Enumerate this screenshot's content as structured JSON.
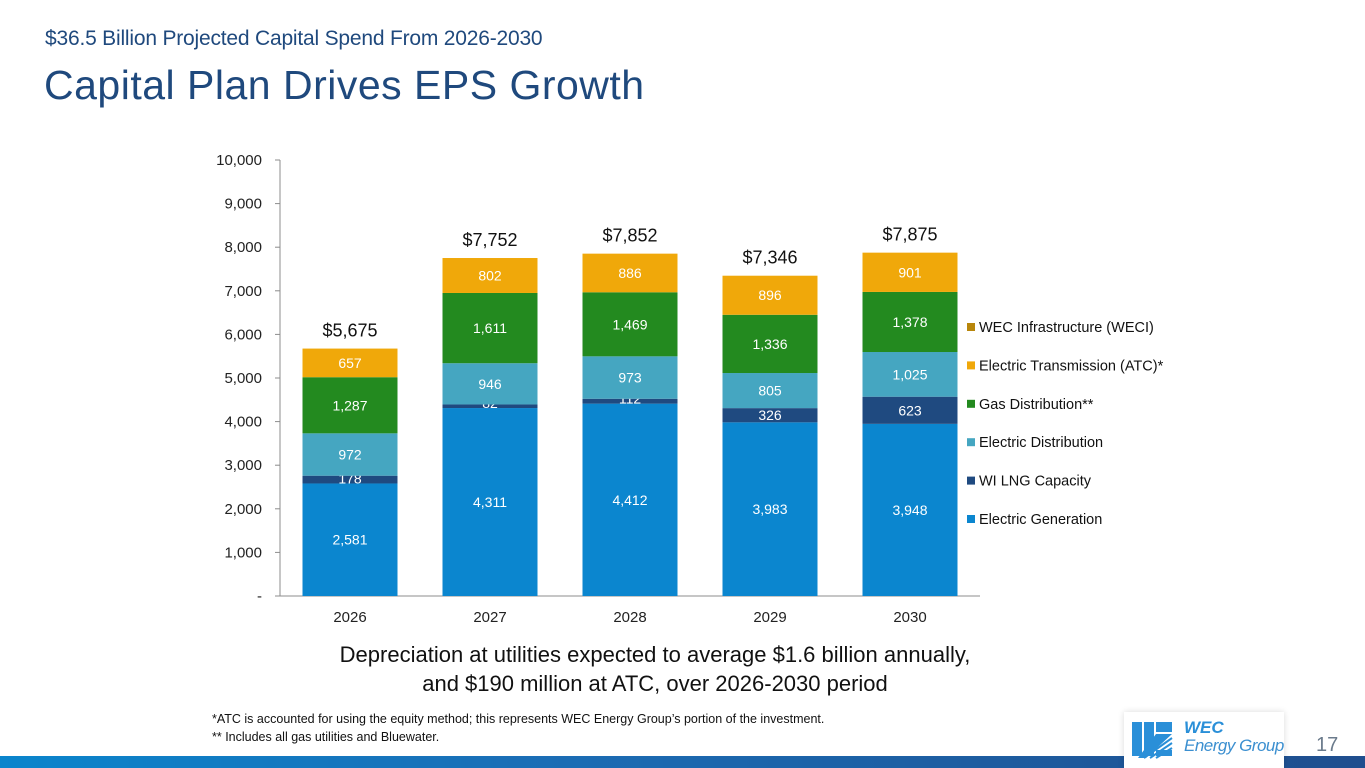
{
  "header": {
    "subtitle": "$36.5 Billion Projected Capital Spend From 2026-2030",
    "title": "Capital Plan Drives EPS Growth"
  },
  "chart_data": {
    "type": "bar",
    "stacked": true,
    "title": "",
    "xlabel": "",
    "ylabel": "",
    "ylim": [
      0,
      10000
    ],
    "yticks": [
      0,
      1000,
      2000,
      3000,
      4000,
      5000,
      6000,
      7000,
      8000,
      9000,
      10000
    ],
    "ytick_labels": [
      "-",
      "1,000",
      "2,000",
      "3,000",
      "4,000",
      "5,000",
      "6,000",
      "7,000",
      "8,000",
      "9,000",
      "10,000"
    ],
    "grid": false,
    "legend_position": "right",
    "categories": [
      "2026",
      "2027",
      "2028",
      "2029",
      "2030"
    ],
    "totals": [
      5675,
      7752,
      7852,
      7346,
      7875
    ],
    "total_labels": [
      "$5,675",
      "$7,752",
      "$7,852",
      "$7,346",
      "$7,875"
    ],
    "series": [
      {
        "name": "Electric Generation",
        "color": "#0b86cf",
        "values": [
          2581,
          4311,
          4412,
          3983,
          3948
        ],
        "labels": [
          "2,581",
          "4,311",
          "4,412",
          "3,983",
          "3,948"
        ]
      },
      {
        "name": "WI LNG Capacity",
        "color": "#1f4a80",
        "values": [
          178,
          82,
          112,
          326,
          623
        ],
        "labels": [
          "178",
          "82",
          "112",
          "326",
          "623"
        ]
      },
      {
        "name": "Electric Distribution",
        "color": "#45a6c1",
        "values": [
          972,
          946,
          973,
          805,
          1025
        ],
        "labels": [
          "972",
          "946",
          "973",
          "805",
          "1,025"
        ]
      },
      {
        "name": "Gas Distribution**",
        "color": "#238a1f",
        "values": [
          1287,
          1611,
          1469,
          1336,
          1378
        ],
        "labels": [
          "1,287",
          "1,611",
          "1,469",
          "1,336",
          "1,378"
        ]
      },
      {
        "name": "Electric Transmission (ATC)*",
        "color": "#f0a80a",
        "values": [
          657,
          802,
          886,
          896,
          901
        ],
        "labels": [
          "657",
          "802",
          "886",
          "896",
          "901"
        ]
      },
      {
        "name": "WEC Infrastructure (WECI)",
        "color": "#b8860b",
        "values": [
          0,
          0,
          0,
          0,
          0
        ],
        "labels": [
          "-",
          "",
          "",
          "",
          ""
        ]
      }
    ],
    "legend_order": [
      "WEC Infrastructure (WECI)",
      "Electric Transmission (ATC)*",
      "Gas Distribution**",
      "Electric Distribution",
      "WI LNG Capacity",
      "Electric Generation"
    ]
  },
  "note": {
    "line1": "Depreciation at utilities expected to average $1.6 billion annually,",
    "line2": "and $190 million at ATC, over 2026-2030 period"
  },
  "footnotes": [
    "*ATC is accounted for using the equity method; this represents WEC Energy Group’s portion of the investment.",
    "** Includes all gas utilities and Bluewater."
  ],
  "logo": {
    "line1": "WEC",
    "line2": "Energy Group"
  },
  "page_number": "17"
}
